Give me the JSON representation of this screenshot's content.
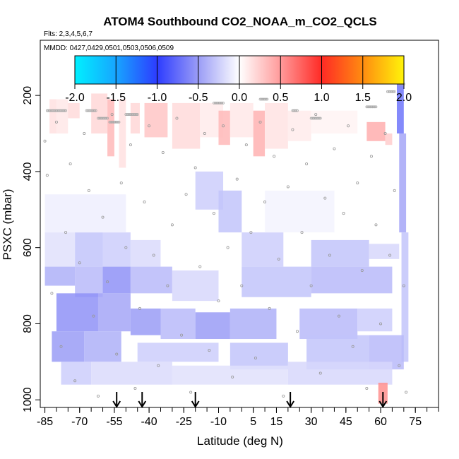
{
  "chart_data": {
    "type": "heatmap",
    "title": "ATOM4 Southbound CO2_NOAA_m_CO2_QCLS",
    "flights_label": "Flts: 2,3,4,5,6,7",
    "mmdd_label": "MMDD: 0427,0429,0501,0503,0506,0509",
    "xlabel": "Latitude (deg N)",
    "ylabel": "PSXC (mbar)",
    "xlim": [
      -87,
      85
    ],
    "ylim": [
      1020,
      55
    ],
    "y_reversed": true,
    "x_ticks": [
      -85,
      -70,
      -55,
      -40,
      -25,
      -10,
      5,
      15,
      30,
      45,
      60,
      75
    ],
    "x_tick_labels": [
      "-85",
      "-70",
      "-55",
      "-40",
      "-25",
      "-10",
      "5",
      "15",
      "30",
      "45",
      "60",
      "75"
    ],
    "x_minor_step": 5,
    "y_ticks": [
      200,
      400,
      600,
      800,
      1000
    ],
    "y_tick_labels": [
      "200",
      "400",
      "600",
      "800",
      "1000"
    ],
    "colorbar": {
      "min": -2.0,
      "max": 2.0,
      "ticks": [
        -2.0,
        -1.5,
        -1.0,
        -0.5,
        0.0,
        0.5,
        1.0,
        1.5,
        2.0
      ],
      "tick_labels": [
        "-2.0",
        "-1.5",
        "-1.0",
        "-0.5",
        "0.0",
        "0.5",
        "1.0",
        "1.5",
        "2.0"
      ],
      "stops": [
        {
          "v": -2.0,
          "color": "#00f0ff"
        },
        {
          "v": -1.5,
          "color": "#17a5ff"
        },
        {
          "v": -1.0,
          "color": "#2d3cff"
        },
        {
          "v": -0.5,
          "color": "#9a9cf6"
        },
        {
          "v": 0.0,
          "color": "#ffffff"
        },
        {
          "v": 0.5,
          "color": "#ff9a9a"
        },
        {
          "v": 1.0,
          "color": "#ff2a25"
        },
        {
          "v": 1.5,
          "color": "#ff8c10"
        },
        {
          "v": 2.0,
          "color": "#fff40a"
        }
      ]
    },
    "flight_marker_latitudes": [
      -54,
      -43,
      -20,
      21,
      61
    ],
    "cells": [
      {
        "x": [
          -83,
          -80
        ],
        "y": [
          210,
          300
        ],
        "v": 0.15
      },
      {
        "x": [
          -80,
          -75
        ],
        "y": [
          210,
          300
        ],
        "v": 0.12
      },
      {
        "x": [
          -75,
          -70
        ],
        "y": [
          220,
          260
        ],
        "v": 0.18
      },
      {
        "x": [
          -65,
          -58
        ],
        "y": [
          195,
          300
        ],
        "v": 0.2
      },
      {
        "x": [
          -58,
          -55
        ],
        "y": [
          210,
          360
        ],
        "v": 0.35
      },
      {
        "x": [
          -53,
          -50
        ],
        "y": [
          210,
          390
        ],
        "v": 0.15
      },
      {
        "x": [
          -48,
          -44
        ],
        "y": [
          220,
          300
        ],
        "v": 0.2
      },
      {
        "x": [
          -42,
          -32
        ],
        "y": [
          220,
          310
        ],
        "v": 0.28
      },
      {
        "x": [
          -30,
          -18
        ],
        "y": [
          220,
          340
        ],
        "v": 0.18
      },
      {
        "x": [
          -18,
          -8
        ],
        "y": [
          220,
          310
        ],
        "v": 0.1
      },
      {
        "x": [
          -10,
          -5
        ],
        "y": [
          240,
          330
        ],
        "v": 0.35
      },
      {
        "x": [
          -5,
          5
        ],
        "y": [
          220,
          310
        ],
        "v": 0.12
      },
      {
        "x": [
          5,
          10
        ],
        "y": [
          240,
          360
        ],
        "v": 0.38
      },
      {
        "x": [
          10,
          20
        ],
        "y": [
          220,
          340
        ],
        "v": 0.14
      },
      {
        "x": [
          20,
          30
        ],
        "y": [
          240,
          320
        ],
        "v": 0.1
      },
      {
        "x": [
          30,
          50
        ],
        "y": [
          240,
          300
        ],
        "v": 0.06
      },
      {
        "x": [
          54,
          62
        ],
        "y": [
          270,
          320
        ],
        "v": 0.4
      },
      {
        "x": [
          62,
          65
        ],
        "y": [
          300,
          330
        ],
        "v": 0.25
      },
      {
        "x": [
          67,
          70
        ],
        "y": [
          170,
          300
        ],
        "v": -0.7
      },
      {
        "x": [
          68,
          71
        ],
        "y": [
          300,
          560
        ],
        "v": -0.45
      },
      {
        "x": [
          69,
          72
        ],
        "y": [
          560,
          900
        ],
        "v": -0.3
      },
      {
        "x": [
          -85,
          -72
        ],
        "y": [
          560,
          650
        ],
        "v": -0.15
      },
      {
        "x": [
          -72,
          -60
        ],
        "y": [
          560,
          650
        ],
        "v": -0.3
      },
      {
        "x": [
          -60,
          -48
        ],
        "y": [
          560,
          650
        ],
        "v": -0.25
      },
      {
        "x": [
          -48,
          -35
        ],
        "y": [
          580,
          650
        ],
        "v": -0.18
      },
      {
        "x": [
          -20,
          -8
        ],
        "y": [
          400,
          500
        ],
        "v": -0.25
      },
      {
        "x": [
          -10,
          0
        ],
        "y": [
          450,
          560
        ],
        "v": -0.3
      },
      {
        "x": [
          0,
          18
        ],
        "y": [
          560,
          650
        ],
        "v": -0.25
      },
      {
        "x": [
          30,
          55
        ],
        "y": [
          580,
          650
        ],
        "v": -0.3
      },
      {
        "x": [
          55,
          68
        ],
        "y": [
          590,
          630
        ],
        "v": -0.2
      },
      {
        "x": [
          -85,
          -72
        ],
        "y": [
          650,
          700
        ],
        "v": -0.4
      },
      {
        "x": [
          -72,
          -60
        ],
        "y": [
          650,
          730
        ],
        "v": -0.35
      },
      {
        "x": [
          -60,
          -48
        ],
        "y": [
          650,
          720
        ],
        "v": -0.55
      },
      {
        "x": [
          -48,
          -30
        ],
        "y": [
          650,
          720
        ],
        "v": -0.35
      },
      {
        "x": [
          -30,
          -10
        ],
        "y": [
          660,
          740
        ],
        "v": -0.2
      },
      {
        "x": [
          0,
          30
        ],
        "y": [
          650,
          730
        ],
        "v": -0.3
      },
      {
        "x": [
          30,
          65
        ],
        "y": [
          650,
          720
        ],
        "v": -0.35
      },
      {
        "x": [
          -80,
          -62
        ],
        "y": [
          720,
          820
        ],
        "v": -0.55
      },
      {
        "x": [
          -62,
          -48
        ],
        "y": [
          720,
          820
        ],
        "v": -0.45
      },
      {
        "x": [
          -48,
          -35
        ],
        "y": [
          760,
          830
        ],
        "v": -0.5
      },
      {
        "x": [
          -35,
          -20
        ],
        "y": [
          760,
          840
        ],
        "v": -0.35
      },
      {
        "x": [
          -20,
          -5
        ],
        "y": [
          770,
          840
        ],
        "v": -0.5
      },
      {
        "x": [
          -5,
          15
        ],
        "y": [
          760,
          840
        ],
        "v": -0.4
      },
      {
        "x": [
          25,
          50
        ],
        "y": [
          760,
          840
        ],
        "v": -0.35
      },
      {
        "x": [
          50,
          65
        ],
        "y": [
          760,
          820
        ],
        "v": -0.25
      },
      {
        "x": [
          -82,
          -68
        ],
        "y": [
          820,
          900
        ],
        "v": -0.5
      },
      {
        "x": [
          -68,
          -52
        ],
        "y": [
          820,
          900
        ],
        "v": -0.4
      },
      {
        "x": [
          -45,
          -10
        ],
        "y": [
          850,
          900
        ],
        "v": -0.25
      },
      {
        "x": [
          -5,
          20
        ],
        "y": [
          850,
          920
        ],
        "v": -0.3
      },
      {
        "x": [
          28,
          55
        ],
        "y": [
          830,
          920
        ],
        "v": -0.3
      },
      {
        "x": [
          55,
          70
        ],
        "y": [
          830,
          920
        ],
        "v": -0.35
      },
      {
        "x": [
          -78,
          -65
        ],
        "y": [
          900,
          960
        ],
        "v": -0.25
      },
      {
        "x": [
          -65,
          -30
        ],
        "y": [
          900,
          960
        ],
        "v": -0.18
      },
      {
        "x": [
          -30,
          20
        ],
        "y": [
          910,
          960
        ],
        "v": -0.15
      },
      {
        "x": [
          20,
          65
        ],
        "y": [
          900,
          960
        ],
        "v": -0.2
      },
      {
        "x": [
          59,
          63
        ],
        "y": [
          955,
          1010
        ],
        "v": 0.55
      },
      {
        "x": [
          -85,
          -50
        ],
        "y": [
          460,
          560
        ],
        "v": -0.08
      },
      {
        "x": [
          10,
          40
        ],
        "y": [
          450,
          560
        ],
        "v": -0.06
      }
    ],
    "sample_points": [
      {
        "x": -85,
        "y": 320
      },
      {
        "x": -84,
        "y": 410
      },
      {
        "x": -82,
        "y": 720
      },
      {
        "x": -80,
        "y": 270
      },
      {
        "x": -78,
        "y": 860
      },
      {
        "x": -76,
        "y": 560
      },
      {
        "x": -74,
        "y": 380
      },
      {
        "x": -72,
        "y": 950
      },
      {
        "x": -70,
        "y": 640
      },
      {
        "x": -68,
        "y": 300
      },
      {
        "x": -66,
        "y": 450
      },
      {
        "x": -64,
        "y": 780
      },
      {
        "x": -62,
        "y": 990
      },
      {
        "x": -60,
        "y": 520
      },
      {
        "x": -58,
        "y": 690
      },
      {
        "x": -56,
        "y": 250
      },
      {
        "x": -54,
        "y": 880
      },
      {
        "x": -52,
        "y": 430
      },
      {
        "x": -50,
        "y": 600
      },
      {
        "x": -48,
        "y": 330
      },
      {
        "x": -46,
        "y": 970
      },
      {
        "x": -44,
        "y": 760
      },
      {
        "x": -42,
        "y": 480
      },
      {
        "x": -40,
        "y": 280
      },
      {
        "x": -38,
        "y": 620
      },
      {
        "x": -36,
        "y": 910
      },
      {
        "x": -34,
        "y": 350
      },
      {
        "x": -32,
        "y": 700
      },
      {
        "x": -30,
        "y": 540
      },
      {
        "x": -28,
        "y": 260
      },
      {
        "x": -26,
        "y": 830
      },
      {
        "x": -24,
        "y": 460
      },
      {
        "x": -22,
        "y": 980
      },
      {
        "x": -20,
        "y": 390
      },
      {
        "x": -18,
        "y": 650
      },
      {
        "x": -16,
        "y": 300
      },
      {
        "x": -14,
        "y": 870
      },
      {
        "x": -12,
        "y": 510
      },
      {
        "x": -10,
        "y": 740
      },
      {
        "x": -8,
        "y": 280
      },
      {
        "x": -6,
        "y": 600
      },
      {
        "x": -4,
        "y": 940
      },
      {
        "x": -2,
        "y": 420
      },
      {
        "x": 0,
        "y": 700
      },
      {
        "x": 2,
        "y": 330
      },
      {
        "x": 4,
        "y": 560
      },
      {
        "x": 6,
        "y": 890
      },
      {
        "x": 8,
        "y": 270
      },
      {
        "x": 10,
        "y": 480
      },
      {
        "x": 12,
        "y": 760
      },
      {
        "x": 14,
        "y": 360
      },
      {
        "x": 16,
        "y": 630
      },
      {
        "x": 18,
        "y": 990
      },
      {
        "x": 20,
        "y": 440
      },
      {
        "x": 22,
        "y": 290
      },
      {
        "x": 24,
        "y": 820
      },
      {
        "x": 26,
        "y": 560
      },
      {
        "x": 28,
        "y": 380
      },
      {
        "x": 30,
        "y": 700
      },
      {
        "x": 32,
        "y": 250
      },
      {
        "x": 34,
        "y": 930
      },
      {
        "x": 36,
        "y": 470
      },
      {
        "x": 38,
        "y": 620
      },
      {
        "x": 40,
        "y": 340
      },
      {
        "x": 42,
        "y": 780
      },
      {
        "x": 44,
        "y": 510
      },
      {
        "x": 46,
        "y": 280
      },
      {
        "x": 48,
        "y": 860
      },
      {
        "x": 50,
        "y": 430
      },
      {
        "x": 52,
        "y": 660
      },
      {
        "x": 54,
        "y": 970
      },
      {
        "x": 56,
        "y": 360
      },
      {
        "x": 58,
        "y": 540
      },
      {
        "x": 60,
        "y": 800
      },
      {
        "x": 62,
        "y": 300
      },
      {
        "x": 64,
        "y": 620
      },
      {
        "x": 66,
        "y": 450
      },
      {
        "x": 68,
        "y": 910
      },
      {
        "x": 70,
        "y": 700
      },
      {
        "x": 71,
        "y": 980
      }
    ],
    "top_sample_rows": [
      {
        "x0": -84,
        "x1": -76,
        "y": 240
      },
      {
        "x0": -67,
        "x1": -63,
        "y": 240
      },
      {
        "x0": -62,
        "x1": -58,
        "y": 260
      },
      {
        "x0": -57,
        "x1": -53,
        "y": 270
      },
      {
        "x0": -50,
        "x1": -45,
        "y": 250
      },
      {
        "x0": -12,
        "x1": -8,
        "y": 220
      },
      {
        "x0": 8,
        "x1": 11,
        "y": 210
      },
      {
        "x0": 22,
        "x1": 24,
        "y": 240
      },
      {
        "x0": 30,
        "x1": 34,
        "y": 260
      },
      {
        "x0": 54,
        "x1": 58,
        "y": 230
      },
      {
        "x0": 63,
        "x1": 66,
        "y": 190
      },
      {
        "x0": 68,
        "x1": 70,
        "y": 170
      }
    ]
  }
}
